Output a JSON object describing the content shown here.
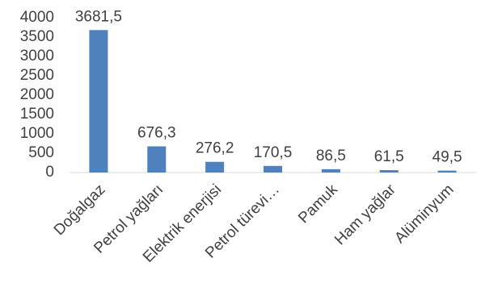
{
  "chart_data": {
    "type": "bar",
    "categories": [
      "Doğalgaz",
      "Petrol yağları",
      "Elektrik enerjisi",
      "Petrol türevi…",
      "Pamuk",
      "Ham yağlar",
      "Alüminyum"
    ],
    "values": [
      3681.5,
      676.3,
      276.2,
      170.5,
      86.5,
      61.5,
      49.5
    ],
    "data_labels": [
      "3681,5",
      "676,3",
      "276,2",
      "170,5",
      "86,5",
      "61,5",
      "49,5"
    ],
    "y_ticks": [
      0,
      500,
      1000,
      1500,
      2000,
      2500,
      3000,
      3500,
      4000
    ],
    "ylim": [
      0,
      4000
    ],
    "title": "",
    "xlabel": "",
    "ylabel": "",
    "grid": false,
    "legend": "none",
    "bar_color": "#4f81bd",
    "axis_color": "#d9d9d9",
    "text_color": "#404040"
  }
}
